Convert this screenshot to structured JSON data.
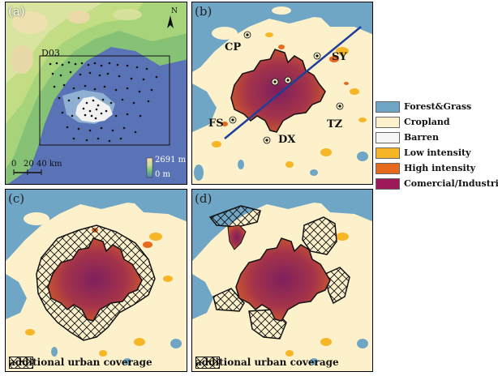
{
  "panels": {
    "a": {
      "label": "(a)",
      "domain_label": "D03",
      "scale": {
        "t0": "0",
        "t20": "20",
        "t40": "40 km"
      },
      "elevation": {
        "max": "2691 m",
        "min": "0 m"
      },
      "north": "N"
    },
    "b": {
      "label": "(b)",
      "cities": {
        "cp": "CP",
        "sy": "SY",
        "fs": "FS",
        "tz": "TZ",
        "dx": "DX"
      }
    },
    "c": {
      "label": "(c)",
      "legend_text": "additional urban coverage"
    },
    "d": {
      "label": "(d)",
      "legend_text": "additional urban coverage"
    }
  },
  "legend": [
    {
      "label": "Forest&Grass",
      "color": "#6fa6c6"
    },
    {
      "label": "Cropland",
      "color": "#fdf1cc"
    },
    {
      "label": "Barren",
      "color": "#f6f6f6"
    },
    {
      "label": "Low intensity",
      "color": "#f6b626"
    },
    {
      "label": "High intensity",
      "color": "#e56a1d"
    },
    {
      "label": "Comercial/Industrial",
      "color": "#9c1a5a"
    }
  ]
}
